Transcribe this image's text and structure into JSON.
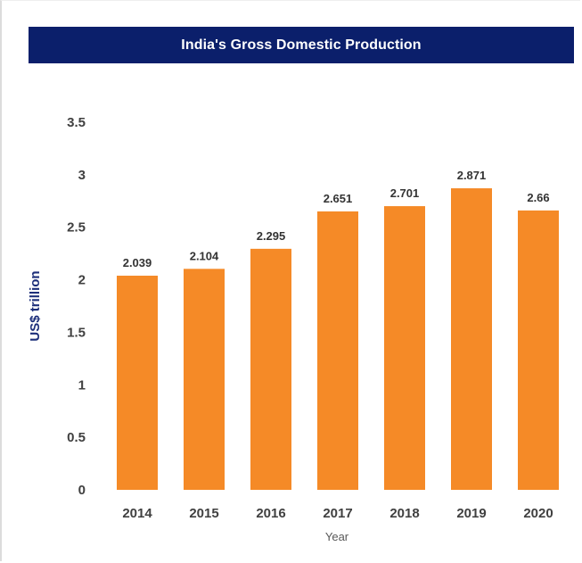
{
  "chart_data": {
    "type": "bar",
    "title": "India's Gross Domestic Production",
    "xlabel": "Year",
    "ylabel": "US$ trillion",
    "categories": [
      "2014",
      "2015",
      "2016",
      "2017",
      "2018",
      "2019",
      "2020"
    ],
    "values": [
      2.039,
      2.104,
      2.295,
      2.651,
      2.701,
      2.871,
      2.66
    ],
    "data_labels": [
      "2.039",
      "2.104",
      "2.295",
      "2.651",
      "2.701",
      "2.871",
      "2.66"
    ],
    "y_ticks": [
      "0",
      "0.5",
      "1",
      "1.5",
      "2",
      "2.5",
      "3",
      "3.5"
    ],
    "ylim": [
      0,
      3.5
    ],
    "grid": false,
    "legend": "none",
    "bar_color": "#f58a27",
    "title_background": "#0b1f6b"
  }
}
